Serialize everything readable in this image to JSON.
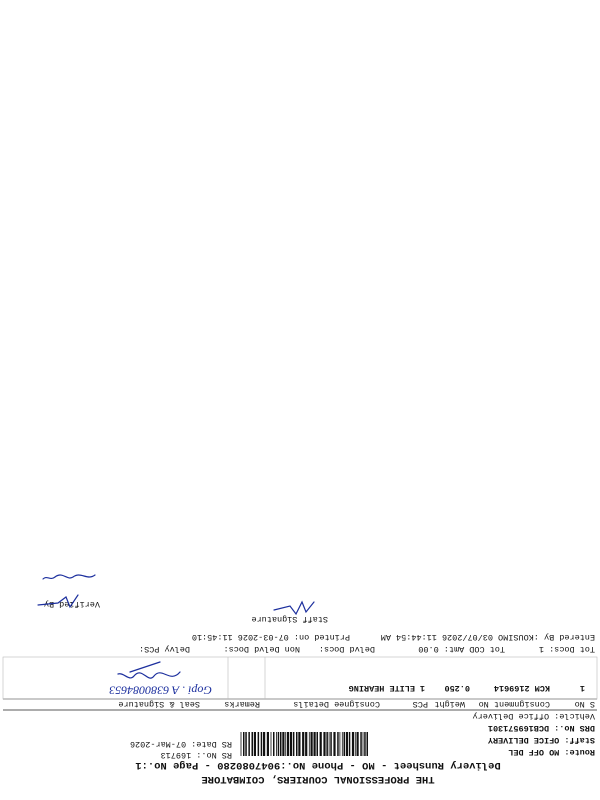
{
  "header": {
    "title": "THE PROFESSIONAL COURIERS, COIMBATORE",
    "subtitle": "Delivery Runsheet - MO - Phone No.:9047080280 - Page No.:1",
    "route": "Route: MO OFF DEL",
    "rs_no": "RS No.: 169713",
    "rs_date": "RS Date: 07-Mar-2026",
    "staff": "Staff: OFICE DELIVERY",
    "drs_no": "DRS No.: DCB169571301",
    "vehicle": "Vehicle: Office Delivery"
  },
  "table": {
    "columns": [
      "S No",
      "Consignment No",
      "Weight",
      "PCS",
      "Consignee Details",
      "Remarks",
      "Seal & Signature"
    ],
    "rows": [
      [
        "1",
        "KCM 2169614",
        "0.250",
        "1",
        "ELITE HEARING"
      ]
    ],
    "handwriting": "Gopi . A 6380084653"
  },
  "totals": {
    "tot_docs": "Tot Docs:   1",
    "tot_cod": "Tot COD Amt:   0.00",
    "delvd": "Delvd Docs:",
    "non_delvd": "Non Delvd Docs:",
    "delvy_pcs": "Delvy PCS:"
  },
  "footer": {
    "entered_by": "Entered By :KOUSIMO 03/07/2026 11:44:54 AM",
    "printed_on": "Printed on: 07-03-2026 11:45:10",
    "staff_signature": "Staff Signature",
    "verified_by": "Verified By"
  }
}
